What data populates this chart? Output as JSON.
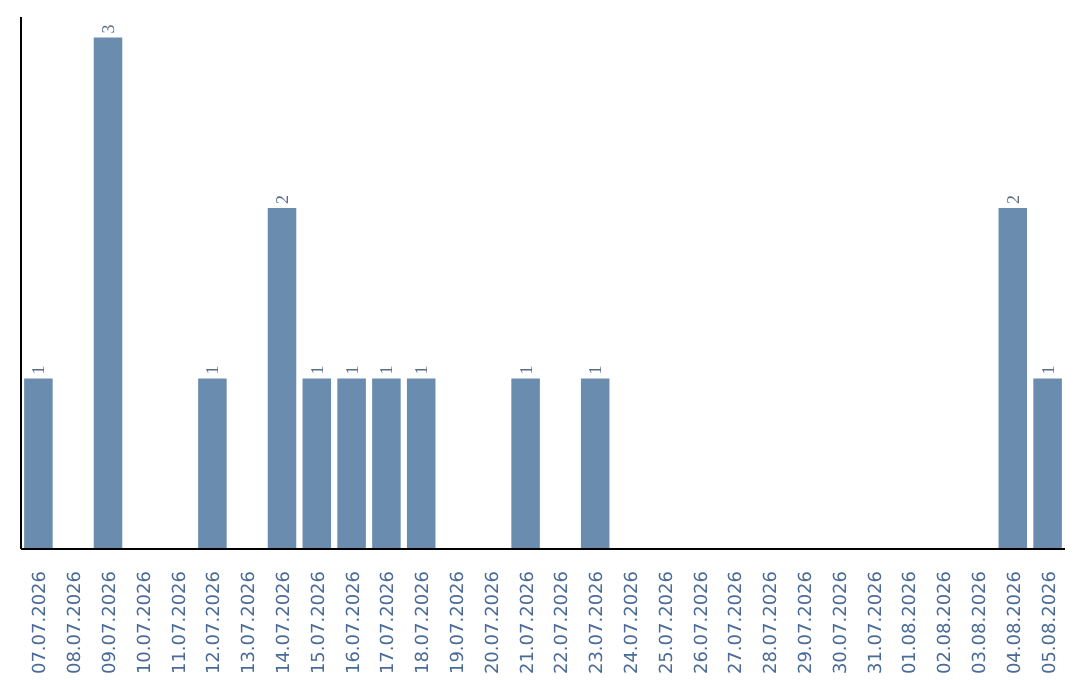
{
  "chart_data": {
    "type": "bar",
    "categories": [
      "07.07.2026",
      "08.07.2026",
      "09.07.2026",
      "10.07.2026",
      "11.07.2026",
      "12.07.2026",
      "13.07.2026",
      "14.07.2026",
      "15.07.2026",
      "16.07.2026",
      "17.07.2026",
      "18.07.2026",
      "19.07.2026",
      "20.07.2026",
      "21.07.2026",
      "22.07.2026",
      "23.07.2026",
      "24.07.2026",
      "25.07.2026",
      "26.07.2026",
      "27.07.2026",
      "28.07.2026",
      "29.07.2026",
      "30.07.2026",
      "31.07.2026",
      "01.08.2026",
      "02.08.2026",
      "03.08.2026",
      "04.08.2026",
      "05.08.2026"
    ],
    "values": [
      1,
      0,
      3,
      0,
      0,
      1,
      0,
      2,
      1,
      1,
      1,
      1,
      0,
      0,
      1,
      0,
      1,
      0,
      0,
      0,
      0,
      0,
      0,
      0,
      0,
      0,
      0,
      0,
      2,
      1
    ],
    "value_labels": [
      "1",
      null,
      "3",
      null,
      null,
      "1",
      null,
      "2",
      "1",
      "1",
      "1",
      "1",
      null,
      null,
      "1",
      null,
      "1",
      null,
      null,
      null,
      null,
      null,
      null,
      null,
      null,
      null,
      null,
      null,
      "2",
      "1"
    ],
    "color": "#6a8caf",
    "grid": false,
    "tick_labels": "x"
  }
}
